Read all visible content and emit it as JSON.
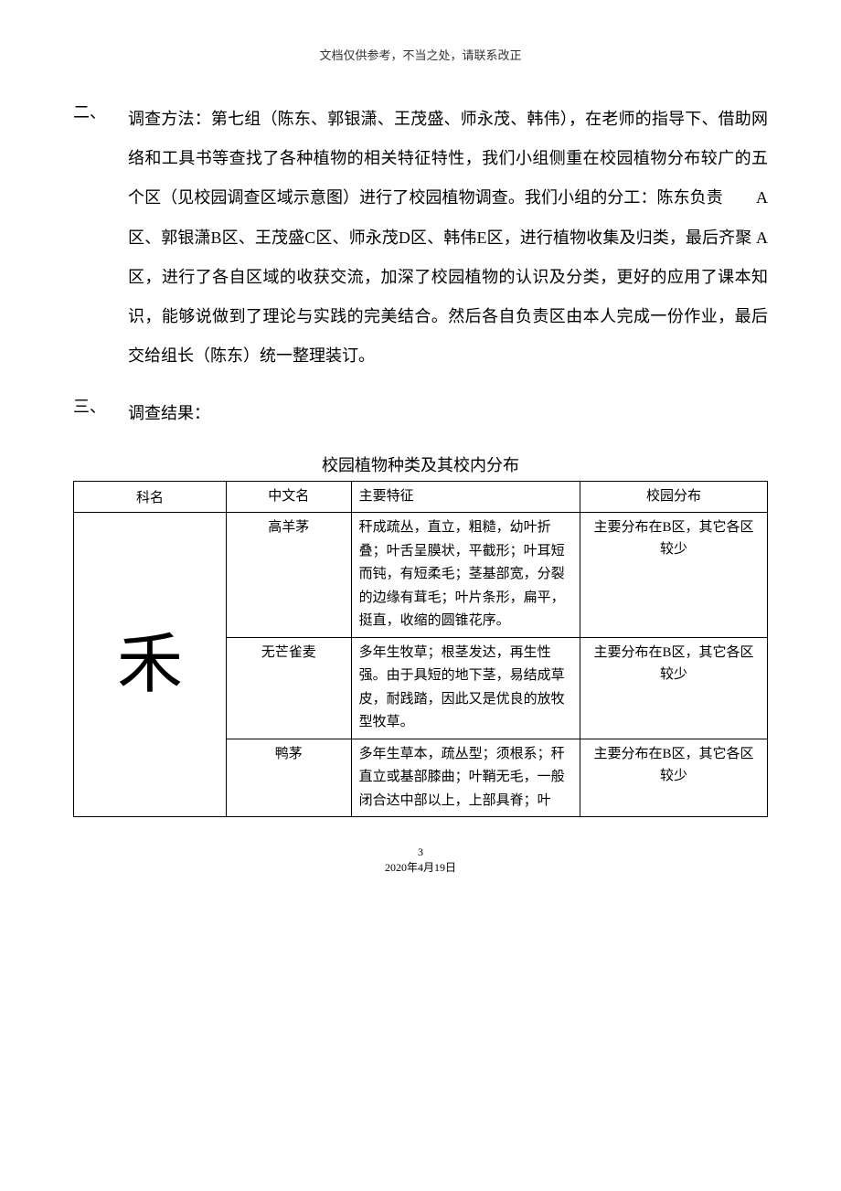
{
  "header_note": "文档仅供参考，不当之处，请联系改正",
  "section2": {
    "number": "二、",
    "text": "调查方法：第七组（陈东、郭银潇、王茂盛、师永茂、韩伟），在老师的指导下、借助网络和工具书等查找了各种植物的相关特征特性，我们小组侧重在校园植物分布较广的五个区（见校园调查区域示意图）进行了校园植物调查。我们小组的分工：陈东负责　　A区、郭银潇B区、王茂盛C区、师永茂D区、韩伟E区，进行植物收集及归类，最后齐聚 A区，进行了各自区域的收获交流，加深了校园植物的认识及分类，更好的应用了课本知识，能够说做到了理论与实践的完美结合。然后各自负责区由本人完成一份作业，最后交给组长（陈东）统一整理装订。"
  },
  "section3": {
    "number": "三、",
    "text": "调查结果："
  },
  "table": {
    "title": "校园植物种类及其校内分布",
    "headers": {
      "family": "科名",
      "name": "中文名",
      "feature": "主要特征",
      "dist": "校园分布"
    },
    "family_char": "禾",
    "rows": [
      {
        "name": "高羊茅",
        "feature": "秆成疏丛，直立，粗糙，幼叶折叠；叶舌呈膜状，平截形；叶耳短而钝，有短柔毛；茎基部宽，分裂的边缘有茸毛；叶片条形，扁平，挺直，收缩的圆锥花序。",
        "dist": "主要分布在B区，其它各区较少"
      },
      {
        "name": "无芒雀麦",
        "feature": "多年生牧草；根茎发达，再生性强。由于具短的地下茎，易结成草皮，耐践踏，因此又是优良的放牧型牧草。",
        "dist": "主要分布在B区，其它各区较少"
      },
      {
        "name": "鸭茅",
        "feature": "多年生草本，疏丛型；须根系；秆直立或基部膝曲；叶鞘无毛，一般闭合达中部以上，上部具脊；叶",
        "dist": "主要分布在B区，其它各区较少"
      }
    ]
  },
  "footer": {
    "page": "3",
    "date": "2020年4月19日"
  }
}
